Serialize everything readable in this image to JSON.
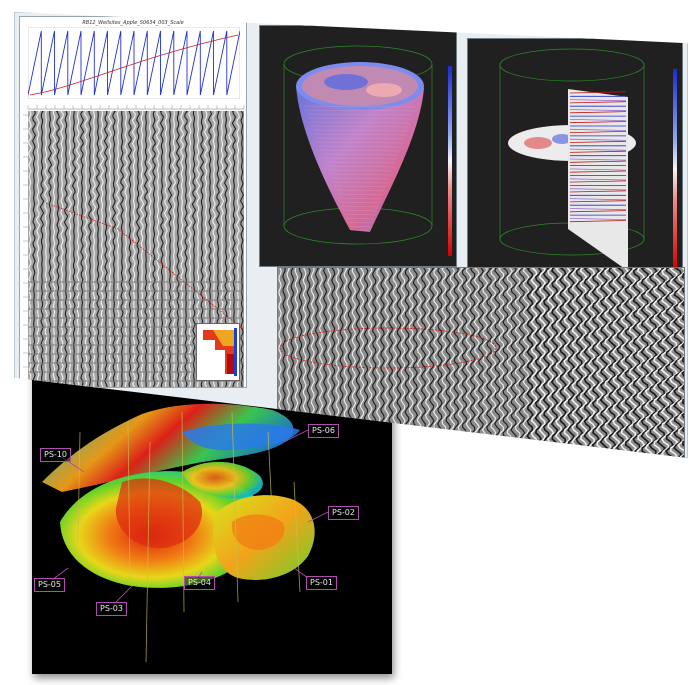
{
  "window": {
    "gather_title": "RB12_Wellsites_Apple_S0634_003_Scale"
  },
  "wells": [
    {
      "label": "PS-10"
    },
    {
      "label": "PS-06"
    },
    {
      "label": "PS-02"
    },
    {
      "label": "PS-05"
    },
    {
      "label": "PS-03"
    },
    {
      "label": "PS-04"
    },
    {
      "label": "PS-01"
    }
  ],
  "colors": {
    "sweep_line": "#2233cc",
    "trend_line": "#cc2222",
    "well_label_border": "#b04bb0",
    "panel_bg": "#202020",
    "colorbar_low": "#1a2bd0",
    "colorbar_high": "#d40000"
  },
  "icons": {
    "well": "well-marker-icon",
    "colorbar": "colorbar-icon"
  }
}
